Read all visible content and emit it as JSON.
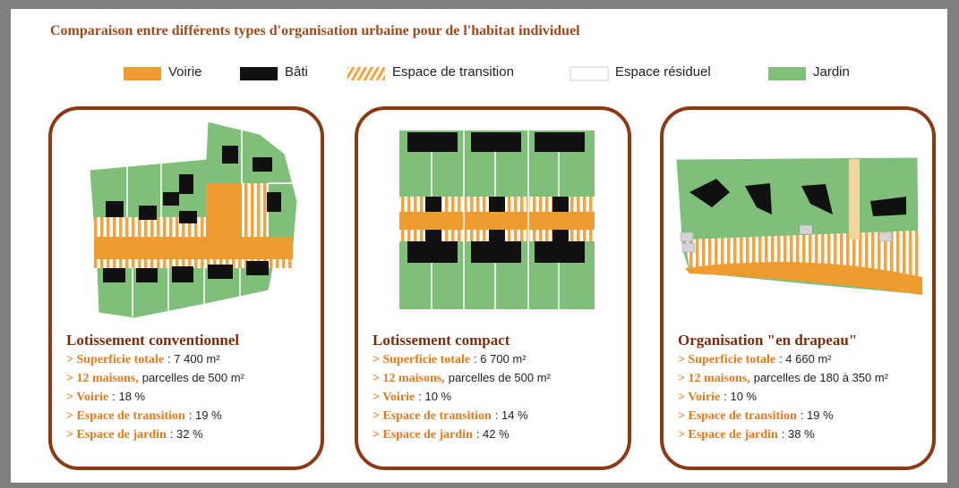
{
  "title": "Comparaison entre différents types d'organisation urbaine pour de l'habitat individuel",
  "legend": [
    "Voirie",
    "Bâti",
    "Espace de transition",
    "Espace résiduel",
    "Jardin"
  ],
  "cards": [
    {
      "title": "Lotissement conventionnel",
      "items": [
        {
          "label": "> Superficie totale",
          "text": ": 7 400 m²"
        },
        {
          "label": "> 12 maisons,",
          "text": "parcelles de 500 m²"
        },
        {
          "label": "> Voirie",
          "text": ": 18 %"
        },
        {
          "label": "> Espace de transition",
          "text": ": 19 %"
        },
        {
          "label": "> Espace de jardin",
          "text": ": 32 %"
        }
      ]
    },
    {
      "title": "Lotissement compact",
      "items": [
        {
          "label": "> Superficie totale",
          "text": ": 6 700 m²"
        },
        {
          "label": "> 12 maisons,",
          "text": "parcelles de 500 m²"
        },
        {
          "label": "> Voirie",
          "text": ": 10 %"
        },
        {
          "label": "> Espace de transition",
          "text": ": 14 %"
        },
        {
          "label": "> Espace de jardin",
          "text": ": 42 %"
        }
      ]
    },
    {
      "title": "Organisation \"en drapeau\"",
      "items": [
        {
          "label": "> Superficie totale",
          "text": ": 4 660 m²"
        },
        {
          "label": "> 12 maisons,",
          "text": "parcelles de 180 à 350 m²"
        },
        {
          "label": "> Voirie",
          "text": ": 10 %"
        },
        {
          "label": "> Espace de transition",
          "text": ": 19 %"
        },
        {
          "label": "> Espace de jardin",
          "text": ": 38 %"
        }
      ]
    }
  ]
}
